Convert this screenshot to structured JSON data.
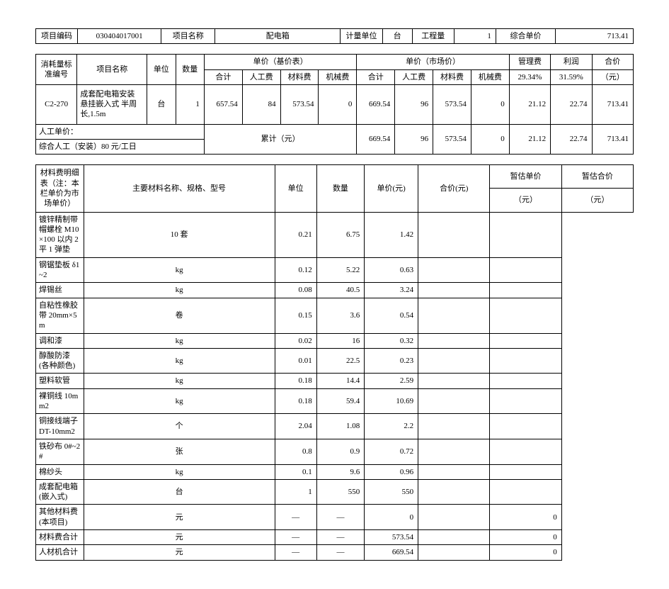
{
  "top": {
    "code_label": "项目编码",
    "code": "030404017001",
    "name_label": "项目名称",
    "name": "配电箱",
    "unit_label": "计量单位",
    "unit": "台",
    "qty_label": "工程量",
    "qty": "1",
    "price_label": "综合单价",
    "price": "713.41"
  },
  "hdr": {
    "consump_code": "消耗量标准编号",
    "item_name": "项目名称",
    "unit": "单位",
    "qty": "数量",
    "base_price": "单价（基价表）",
    "market_price": "单价（市场价）",
    "mgmt": "管理费",
    "profit": "利润",
    "total_price": "合价",
    "subtotal": "合计",
    "labor": "人工费",
    "material": "材料费",
    "machine": "机械费",
    "mgmt_rate": "29.34%",
    "profit_rate": "31.59%",
    "total_unit": "（元）"
  },
  "row1": {
    "code": "C2-270",
    "name": "成套配电箱安装 悬挂嵌入式 半周长,1.5m",
    "unit": "台",
    "qty": "1",
    "b_total": "657.54",
    "b_labor": "84",
    "b_mat": "573.54",
    "b_mach": "0",
    "m_total": "669.54",
    "m_labor": "96",
    "m_mat": "573.54",
    "m_mach": "0",
    "mgmt": "21.12",
    "profit": "22.74",
    "price": "713.41"
  },
  "sumrow": {
    "labor_label": "人工单价：",
    "summary_label": "累计（元）",
    "labor_note": "综合人工（安装）80 元/工日",
    "m_total": "669.54",
    "m_labor": "96",
    "m_mat": "573.54",
    "m_mach": "0",
    "mgmt": "21.12",
    "profit": "22.74",
    "price": "713.41"
  },
  "mat": {
    "side_label": "材料费明细表（注：本栏单价为市场单价）",
    "name_hdr": "主要材料名称、规格、型号",
    "unit_hdr": "单位",
    "qty_hdr": "数量",
    "uprice_hdr": "单价(元)",
    "tprice_hdr": "合价(元)",
    "est_uprice_hdr": "暂估单价",
    "est_tprice_hdr": "暂估合价",
    "yuan": "（元）",
    "rows": [
      {
        "name": "镀锌精制带帽螺栓 M10×100 以内 2 平 1 弹垫",
        "unit": "10 套",
        "qty": "0.21",
        "up": "6.75",
        "tp": "1.42",
        "eup": "",
        "etp": ""
      },
      {
        "name": "钢锯垫板 δ1~2",
        "unit": "kg",
        "qty": "0.12",
        "up": "5.22",
        "tp": "0.63",
        "eup": "",
        "etp": ""
      },
      {
        "name": "焊锡丝",
        "unit": "kg",
        "qty": "0.08",
        "up": "40.5",
        "tp": "3.24",
        "eup": "",
        "etp": ""
      },
      {
        "name": "自粘性橡胶带 20mm×5m",
        "unit": "卷",
        "qty": "0.15",
        "up": "3.6",
        "tp": "0.54",
        "eup": "",
        "etp": ""
      },
      {
        "name": "调和漆",
        "unit": "kg",
        "qty": "0.02",
        "up": "16",
        "tp": "0.32",
        "eup": "",
        "etp": ""
      },
      {
        "name": "醇酸防漆(各种颜色)",
        "unit": "kg",
        "qty": "0.01",
        "up": "22.5",
        "tp": "0.23",
        "eup": "",
        "etp": ""
      },
      {
        "name": "塑料软管",
        "unit": "kg",
        "qty": "0.18",
        "up": "14.4",
        "tp": "2.59",
        "eup": "",
        "etp": ""
      },
      {
        "name": "裸铜线 10mm2",
        "unit": "kg",
        "qty": "0.18",
        "up": "59.4",
        "tp": "10.69",
        "eup": "",
        "etp": ""
      },
      {
        "name": "铜接线端子 DT-10mm2",
        "unit": "个",
        "qty": "2.04",
        "up": "1.08",
        "tp": "2.2",
        "eup": "",
        "etp": ""
      },
      {
        "name": "铁砂布 0#~2#",
        "unit": "张",
        "qty": "0.8",
        "up": "0.9",
        "tp": "0.72",
        "eup": "",
        "etp": ""
      },
      {
        "name": "棉纱头",
        "unit": "kg",
        "qty": "0.1",
        "up": "9.6",
        "tp": "0.96",
        "eup": "",
        "etp": ""
      },
      {
        "name": "成套配电箱(嵌入式)",
        "unit": "台",
        "qty": "1",
        "up": "550",
        "tp": "550",
        "eup": "",
        "etp": ""
      },
      {
        "name": "其他材料费(本项目)",
        "unit": "元",
        "qty": "—",
        "up": "—",
        "tp": "0",
        "eup": "",
        "etp": "0"
      },
      {
        "name": "材料费合计",
        "unit": "元",
        "qty": "—",
        "up": "—",
        "tp": "573.54",
        "eup": "",
        "etp": "0"
      },
      {
        "name": "人材机合计",
        "unit": "元",
        "qty": "—",
        "up": "—",
        "tp": "669.54",
        "eup": "",
        "etp": "0"
      }
    ]
  }
}
